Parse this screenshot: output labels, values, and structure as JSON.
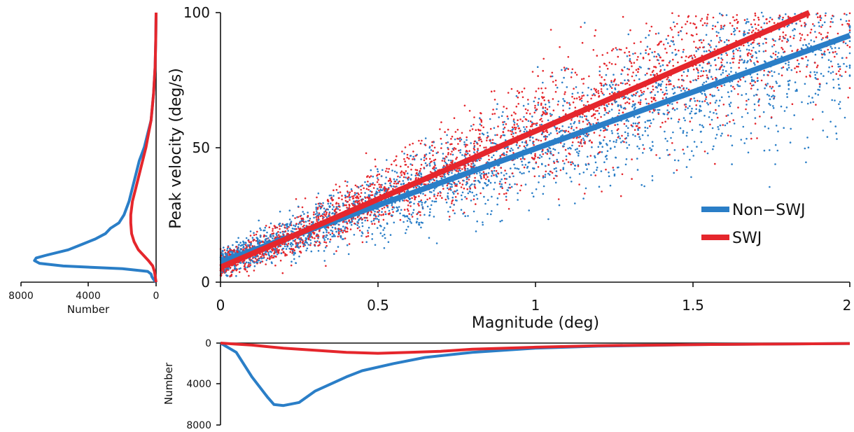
{
  "chart_data": [
    {
      "id": "scatter",
      "type": "scatter",
      "xlabel": "Magnitude (deg)",
      "ylabel": "Peak velocity (deg/s)",
      "xlim": [
        0,
        2
      ],
      "ylim": [
        0,
        100
      ],
      "xticks": [
        "0",
        "0.5",
        "1",
        "1.5",
        "2"
      ],
      "yticks": [
        "0",
        "50",
        "100"
      ],
      "grid": false,
      "legend_position": "lower-right",
      "series": [
        {
          "name": "Non−SWJ",
          "color": "#2a7ec7",
          "fit_line": {
            "intercept": 7.5,
            "slope": 42
          }
        },
        {
          "name": "SWJ",
          "color": "#e5262c",
          "fit_line": {
            "intercept": 5.5,
            "slope": 50.5
          }
        }
      ]
    },
    {
      "id": "left-histogram",
      "type": "line",
      "orientation": "horizontal",
      "xlabel": "Number",
      "xlim": [
        0,
        8000
      ],
      "xticks": [
        "8000",
        "4000",
        "0"
      ],
      "y_shared_with": "Peak velocity (deg/s)",
      "series": [
        {
          "name": "Non−SWJ",
          "color": "#2a7ec7",
          "points": [
            [
              0,
              0
            ],
            [
              1,
              150
            ],
            [
              2,
              250
            ],
            [
              3,
              300
            ],
            [
              4,
              500
            ],
            [
              5,
              2000
            ],
            [
              6,
              5500
            ],
            [
              7,
              6900
            ],
            [
              8,
              7200
            ],
            [
              9,
              7100
            ],
            [
              10,
              6500
            ],
            [
              12,
              5200
            ],
            [
              14,
              4400
            ],
            [
              16,
              3600
            ],
            [
              18,
              3000
            ],
            [
              20,
              2700
            ],
            [
              22,
              2200
            ],
            [
              25,
              1900
            ],
            [
              30,
              1600
            ],
            [
              35,
              1400
            ],
            [
              40,
              1200
            ],
            [
              45,
              1000
            ],
            [
              50,
              700
            ],
            [
              55,
              500
            ],
            [
              60,
              300
            ],
            [
              70,
              150
            ],
            [
              80,
              60
            ],
            [
              90,
              20
            ],
            [
              100,
              0
            ]
          ]
        },
        {
          "name": "SWJ",
          "color": "#e5262c",
          "points": [
            [
              0,
              0
            ],
            [
              4,
              100
            ],
            [
              6,
              200
            ],
            [
              8,
              450
            ],
            [
              10,
              750
            ],
            [
              12,
              1050
            ],
            [
              15,
              1300
            ],
            [
              18,
              1450
            ],
            [
              22,
              1500
            ],
            [
              25,
              1500
            ],
            [
              30,
              1400
            ],
            [
              35,
              1200
            ],
            [
              40,
              1000
            ],
            [
              45,
              800
            ],
            [
              50,
              600
            ],
            [
              55,
              450
            ],
            [
              60,
              300
            ],
            [
              70,
              150
            ],
            [
              80,
              60
            ],
            [
              90,
              20
            ],
            [
              100,
              0
            ]
          ]
        }
      ]
    },
    {
      "id": "bottom-histogram",
      "type": "line",
      "ylabel": "Number",
      "ylim": [
        0,
        8000
      ],
      "yticks": [
        "0",
        "4000",
        "8000"
      ],
      "x_shared_with": "Magnitude (deg)",
      "series": [
        {
          "name": "Non−SWJ",
          "color": "#2a7ec7",
          "points": [
            [
              0,
              0
            ],
            [
              0.05,
              900
            ],
            [
              0.1,
              3300
            ],
            [
              0.15,
              5300
            ],
            [
              0.17,
              6000
            ],
            [
              0.2,
              6100
            ],
            [
              0.25,
              5800
            ],
            [
              0.3,
              4700
            ],
            [
              0.4,
              3300
            ],
            [
              0.45,
              2700
            ],
            [
              0.55,
              2000
            ],
            [
              0.65,
              1400
            ],
            [
              0.8,
              900
            ],
            [
              1.0,
              500
            ],
            [
              1.2,
              300
            ],
            [
              1.5,
              150
            ],
            [
              1.8,
              80
            ],
            [
              2.0,
              40
            ]
          ]
        },
        {
          "name": "SWJ",
          "color": "#e5262c",
          "points": [
            [
              0,
              0
            ],
            [
              0.05,
              100
            ],
            [
              0.1,
              200
            ],
            [
              0.2,
              500
            ],
            [
              0.3,
              700
            ],
            [
              0.4,
              900
            ],
            [
              0.5,
              1000
            ],
            [
              0.6,
              900
            ],
            [
              0.7,
              800
            ],
            [
              0.8,
              600
            ],
            [
              1.0,
              400
            ],
            [
              1.2,
              250
            ],
            [
              1.5,
              150
            ],
            [
              1.8,
              80
            ],
            [
              2.0,
              40
            ]
          ]
        }
      ]
    }
  ]
}
